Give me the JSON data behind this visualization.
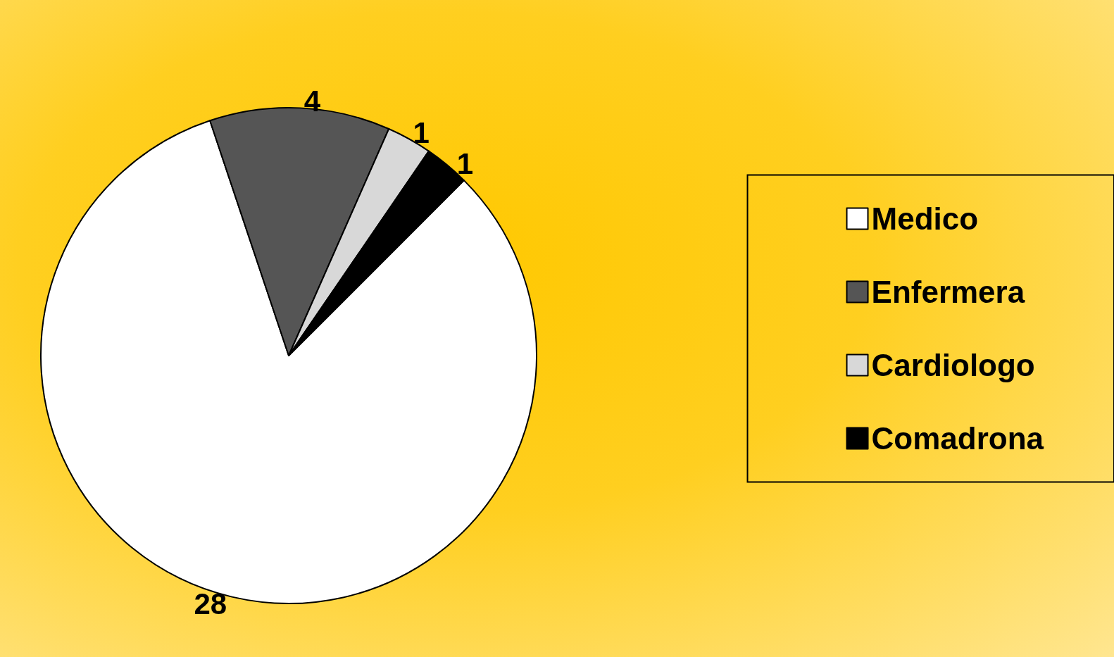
{
  "chart_data": {
    "type": "pie",
    "categories": [
      "Medico",
      "Enfermera",
      "Cardiologo",
      "Comadrona"
    ],
    "values": [
      28,
      4,
      1,
      1
    ],
    "colors": [
      "#ffffff",
      "#555555",
      "#d8d8d8",
      "#000000"
    ],
    "data_labels": true,
    "legend": "right"
  }
}
